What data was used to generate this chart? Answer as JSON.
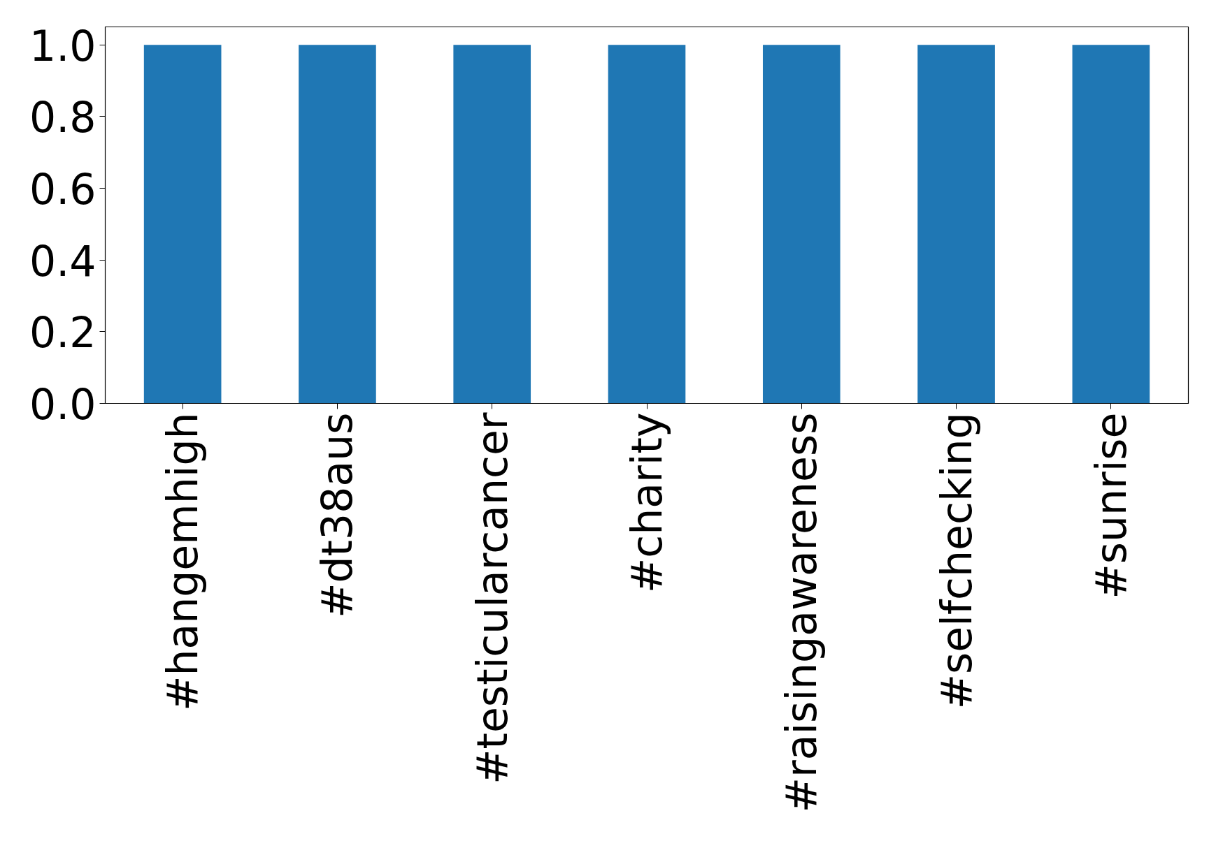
{
  "chart_data": {
    "type": "bar",
    "categories": [
      "#hangemhigh",
      "#dt38aus",
      "#testicularcancer",
      "#charity",
      "#raisingawareness",
      "#selfchecking",
      "#sunrise"
    ],
    "values": [
      1.0,
      1.0,
      1.0,
      1.0,
      1.0,
      1.0,
      1.0
    ],
    "color": "#1f77b4",
    "ylim": [
      0,
      1.05
    ],
    "yticks": [
      {
        "value": 0,
        "label": "0.0"
      },
      {
        "value": 0.2,
        "label": "0.2"
      },
      {
        "value": 0.4,
        "label": "0.4"
      },
      {
        "value": 0.6,
        "label": "0.6"
      },
      {
        "value": 0.8,
        "label": "0.8"
      },
      {
        "value": 1.0,
        "label": "1.0"
      }
    ],
    "grid": false
  }
}
